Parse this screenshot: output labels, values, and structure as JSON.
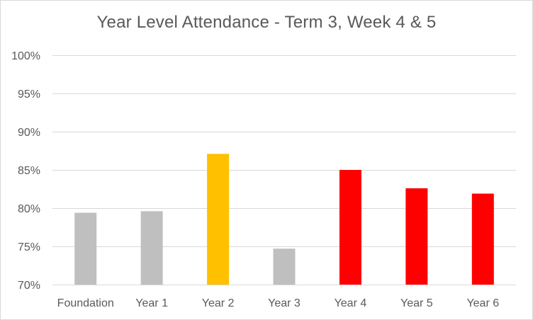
{
  "chart_data": {
    "type": "bar",
    "title": "Year Level Attendance - Term 3, Week 4 & 5",
    "xlabel": "",
    "ylabel": "",
    "categories": [
      "Foundation",
      "Year 1",
      "Year 2",
      "Year 3",
      "Year 4",
      "Year 5",
      "Year 6"
    ],
    "values": [
      79.4,
      79.6,
      87.1,
      74.7,
      85.0,
      82.6,
      81.9
    ],
    "bar_colors": [
      "#bfbfbf",
      "#bfbfbf",
      "#ffc000",
      "#bfbfbf",
      "#ff0000",
      "#ff0000",
      "#ff0000"
    ],
    "ylim": [
      70,
      100
    ],
    "yticks": [
      70,
      75,
      80,
      85,
      90,
      95,
      100
    ],
    "ytick_labels": [
      "70%",
      "75%",
      "80%",
      "85%",
      "90%",
      "95%",
      "100%"
    ],
    "grid": true,
    "legend": "none"
  }
}
